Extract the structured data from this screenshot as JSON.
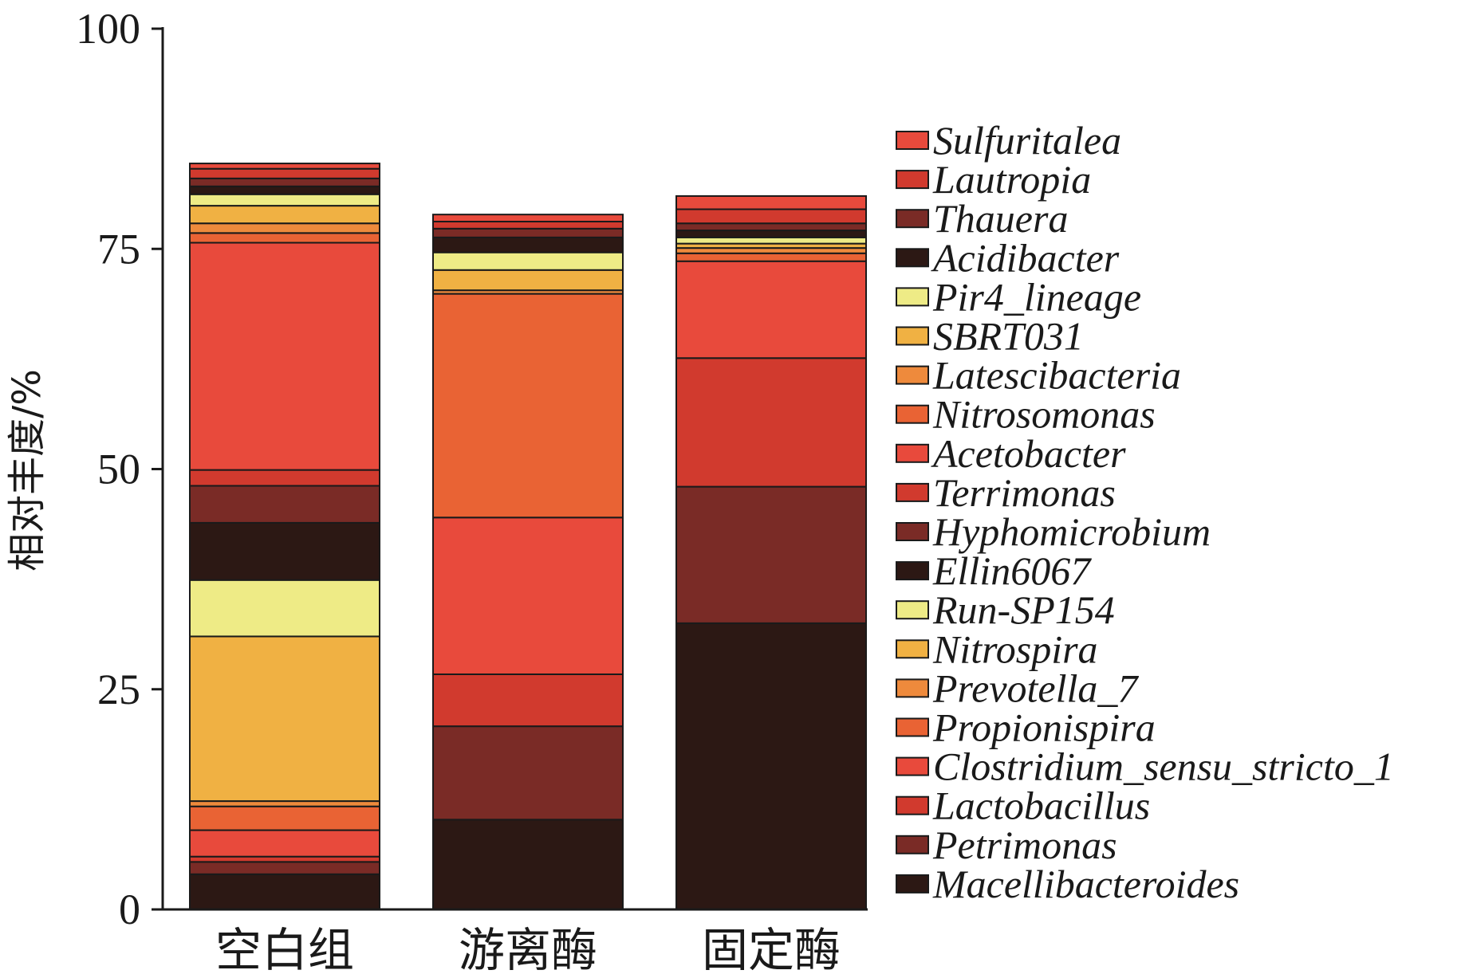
{
  "chart_data": {
    "type": "bar",
    "stacked": true,
    "ylabel": "相对丰度/%",
    "ylim": [
      0,
      100
    ],
    "yticks": [
      "0",
      "25",
      "50",
      "75",
      "100"
    ],
    "categories": [
      "空白组",
      "游离酶",
      "固定酶"
    ],
    "legend_position": "right",
    "series": [
      {
        "name": "Macellibacteroides",
        "color": "#2c1814",
        "values": [
          4.0,
          10.2,
          32.5
        ]
      },
      {
        "name": "Petrimonas",
        "color": "#7a2b26",
        "values": [
          1.4,
          10.6,
          15.5
        ]
      },
      {
        "name": "Lactobacillus",
        "color": "#d13a2e",
        "values": [
          0.6,
          5.9,
          0
        ]
      },
      {
        "name": "Clostridium_sensu_stricto_1",
        "color": "#e84a3c",
        "values": [
          3.0,
          0,
          0
        ]
      },
      {
        "name": "Propionispira",
        "color": "#e96334",
        "values": [
          2.7,
          0,
          0
        ]
      },
      {
        "name": "Prevotella_7",
        "color": "#ee8a3c",
        "values": [
          0.6,
          0,
          0
        ]
      },
      {
        "name": "Nitrospira",
        "color": "#f0b143",
        "values": [
          18.7,
          0,
          0
        ]
      },
      {
        "name": "Run-SP154",
        "color": "#eeeb86",
        "values": [
          6.4,
          0,
          0
        ]
      },
      {
        "name": "Ellin6067",
        "color": "#2c1814",
        "values": [
          6.5,
          0,
          0
        ]
      },
      {
        "name": "Hyphomicrobium",
        "color": "#7a2b26",
        "values": [
          4.2,
          0,
          0
        ]
      },
      {
        "name": "Terrimonas",
        "color": "#d13a2e",
        "values": [
          1.8,
          0,
          14.6
        ]
      },
      {
        "name": "Acetobacter",
        "color": "#e84a3c",
        "values": [
          25.8,
          17.8,
          11.0
        ]
      },
      {
        "name": "Nitrosomonas",
        "color": "#e96334",
        "values": [
          1.1,
          25.4,
          0.9
        ]
      },
      {
        "name": "Latescibacteria",
        "color": "#ee8a3c",
        "values": [
          1.1,
          0.4,
          0.6
        ]
      },
      {
        "name": "SBRT031",
        "color": "#f0b143",
        "values": [
          2.0,
          2.3,
          0.5
        ]
      },
      {
        "name": "Pir4_lineage",
        "color": "#eeeb86",
        "values": [
          1.3,
          2.0,
          0.7
        ]
      },
      {
        "name": "Acidibacter",
        "color": "#2c1814",
        "values": [
          0.9,
          1.7,
          0.8
        ]
      },
      {
        "name": "Thauera",
        "color": "#7a2b26",
        "values": [
          0.9,
          1.0,
          0.8
        ]
      },
      {
        "name": "Lautropia",
        "color": "#d13a2e",
        "values": [
          1.1,
          0.8,
          1.6
        ]
      },
      {
        "name": "Sulfuritalea",
        "color": "#e84a3c",
        "values": [
          0.6,
          0.8,
          1.5
        ]
      }
    ]
  }
}
